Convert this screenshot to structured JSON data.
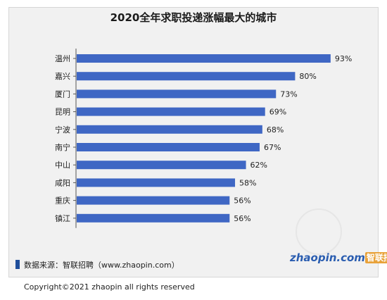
{
  "chart_data": {
    "type": "bar",
    "orientation": "horizontal",
    "title": "2020全年求职投递涨幅最大的城市",
    "categories": [
      "温州",
      "嘉兴",
      "厦门",
      "昆明",
      "宁波",
      "南宁",
      "中山",
      "咸阳",
      "重庆",
      "镇江"
    ],
    "values": [
      93,
      80,
      73,
      69,
      68,
      67,
      62,
      58,
      56,
      56
    ],
    "value_suffix": "%",
    "xlim": [
      0,
      100
    ],
    "grid": false,
    "legend": "none",
    "bar_color": "#3f67c4"
  },
  "source_text": "数据来源：智联招聘（www.zhaopin.com）",
  "logo": {
    "latin": "zhaopin.com",
    "cjk": "智联招聘"
  },
  "copyright": "Copyright©2021 zhaopin all rights reserved",
  "colors": {
    "background_panel": "#f1f1f1",
    "bar": "#3f67c4",
    "source_marker": "#1f4e9b",
    "logo_blue": "#2a5db0",
    "logo_orange": "#e8a23a"
  }
}
